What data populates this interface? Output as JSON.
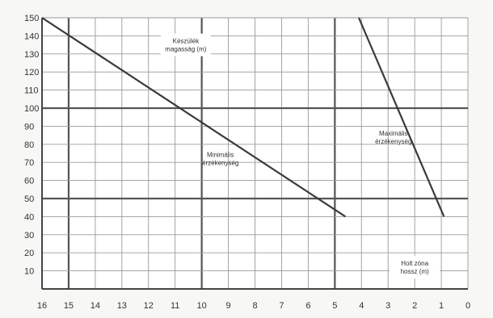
{
  "chart_data": {
    "type": "line",
    "x_axis": {
      "reversed": true,
      "range": [
        16,
        0
      ],
      "ticks": [
        16,
        15,
        14,
        13,
        12,
        11,
        10,
        9,
        8,
        7,
        6,
        5,
        4,
        3,
        2,
        1,
        0
      ],
      "major_lines": [
        15,
        10,
        5
      ]
    },
    "y_axis": {
      "range": [
        0,
        150
      ],
      "ticks": [
        10,
        20,
        30,
        40,
        50,
        60,
        70,
        80,
        90,
        100,
        110,
        120,
        130,
        140,
        150
      ],
      "major_lines": [
        50,
        100
      ]
    },
    "grid": true,
    "series": [
      {
        "name": "Minimális érzékenység",
        "x": [
          16,
          4.6
        ],
        "y": [
          150,
          40
        ]
      },
      {
        "name": "Maximális érzékenység",
        "x": [
          4.1,
          0.9
        ],
        "y": [
          150,
          40
        ]
      }
    ],
    "annotations": [
      {
        "id": "height",
        "lines": [
          "Készülék",
          "magasság (m)"
        ],
        "at": [
          10.6,
          135
        ],
        "boxed": true
      },
      {
        "id": "min",
        "lines": [
          "Minimális",
          "érzékenység"
        ],
        "at": [
          9.3,
          72
        ],
        "boxed": false
      },
      {
        "id": "max",
        "lines": [
          "Maximális",
          "érzékenység"
        ],
        "at": [
          2.8,
          84
        ],
        "boxed": false
      },
      {
        "id": "dead",
        "lines": [
          "Holt zóna",
          "hossz (m)"
        ],
        "at": [
          2.0,
          12
        ],
        "boxed": true
      }
    ]
  }
}
